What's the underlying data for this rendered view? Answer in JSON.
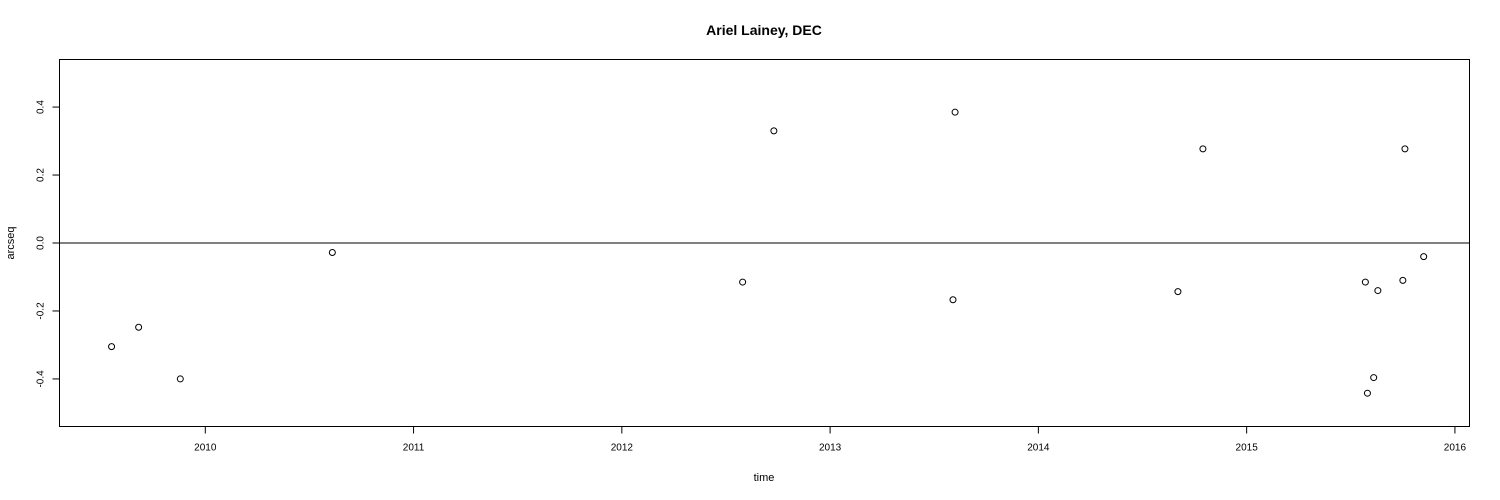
{
  "chart_data": {
    "type": "scatter",
    "title": "Ariel Lainey, DEC",
    "xlabel": "time",
    "ylabel": "arcseq",
    "xlim": [
      2009.3,
      2016.07
    ],
    "ylim": [
      -0.54,
      0.54
    ],
    "x_ticks": [
      2010,
      2011,
      2012,
      2013,
      2014,
      2015,
      2016
    ],
    "x_tick_labels": [
      "2010",
      "2011",
      "2012",
      "2013",
      "2014",
      "2015",
      "2016"
    ],
    "y_ticks": [
      -0.4,
      -0.2,
      0.0,
      0.2,
      0.4
    ],
    "y_tick_labels": [
      "-0.4",
      "-0.2",
      "0.0",
      "0.2",
      "0.4"
    ],
    "reference_line_y": 0.0,
    "grid": false,
    "legend": "none",
    "points": [
      {
        "x": 2009.55,
        "y": -0.305
      },
      {
        "x": 2009.68,
        "y": -0.248
      },
      {
        "x": 2009.88,
        "y": -0.4
      },
      {
        "x": 2010.61,
        "y": -0.028
      },
      {
        "x": 2012.58,
        "y": -0.115
      },
      {
        "x": 2012.73,
        "y": 0.33
      },
      {
        "x": 2013.59,
        "y": -0.167
      },
      {
        "x": 2013.6,
        "y": 0.385
      },
      {
        "x": 2014.67,
        "y": -0.143
      },
      {
        "x": 2014.79,
        "y": 0.277
      },
      {
        "x": 2015.57,
        "y": -0.115
      },
      {
        "x": 2015.58,
        "y": -0.442
      },
      {
        "x": 2015.61,
        "y": -0.396
      },
      {
        "x": 2015.63,
        "y": -0.14
      },
      {
        "x": 2015.75,
        "y": -0.11
      },
      {
        "x": 2015.76,
        "y": 0.277
      },
      {
        "x": 2015.85,
        "y": -0.04
      }
    ]
  }
}
